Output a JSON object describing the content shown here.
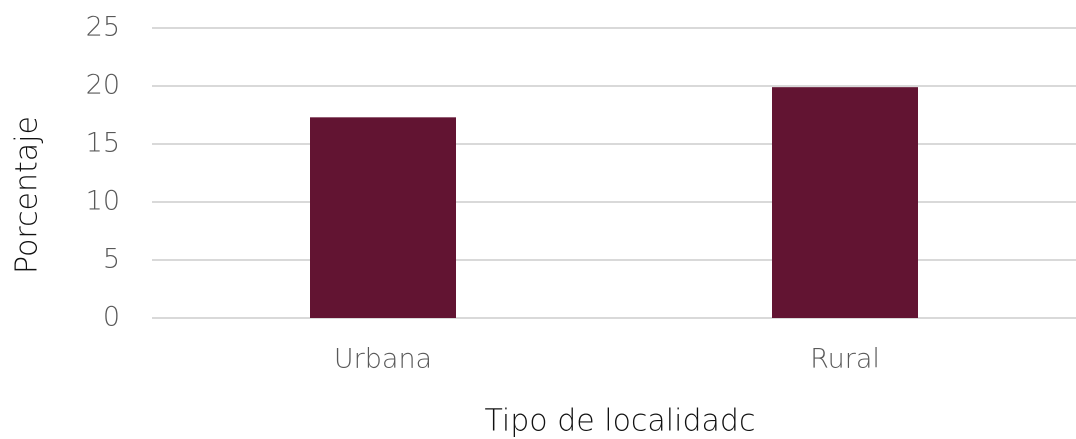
{
  "chart_data": {
    "type": "bar",
    "categories": [
      "Urbana",
      "Rural"
    ],
    "values": [
      17.3,
      19.9
    ],
    "color": "#621432",
    "xlabel": "Tipo de localidadc",
    "ylabel": "Porcentaje",
    "ylim": [
      0,
      25
    ],
    "yticks": [
      0,
      5,
      10,
      15,
      20,
      25
    ],
    "grid": true
  }
}
